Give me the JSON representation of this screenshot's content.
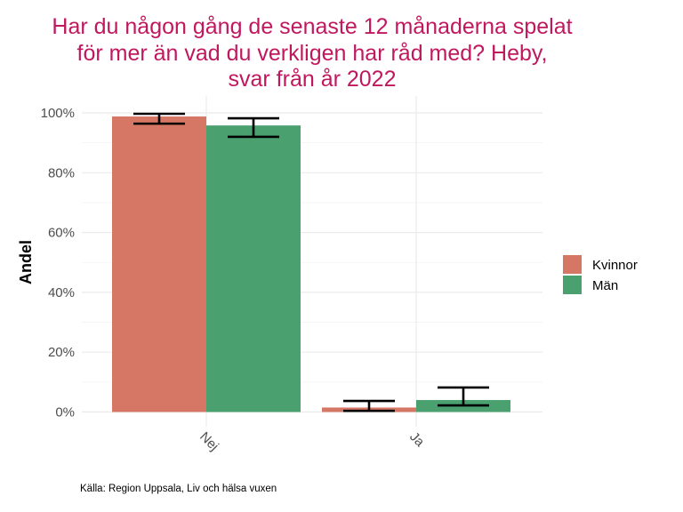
{
  "chart_data": {
    "type": "bar",
    "title_lines": [
      "Har du någon gång de senaste 12 månaderna spelat",
      "för mer än vad du verkligen har råd med? Heby,",
      "svar från år 2022"
    ],
    "xlabel": "",
    "ylabel": "Andel",
    "ylim": [
      0,
      100
    ],
    "yticks": [
      0,
      20,
      40,
      60,
      80,
      100
    ],
    "ytick_labels": [
      "0%",
      "20%",
      "40%",
      "60%",
      "80%",
      "100%"
    ],
    "categories": [
      "Nej",
      "Ja"
    ],
    "series": [
      {
        "name": "Kvinnor",
        "color": "#d67766",
        "values": [
          98.8,
          1.5
        ],
        "err_low": [
          96.4,
          0.4
        ],
        "err_high": [
          99.7,
          3.7
        ]
      },
      {
        "name": "Män",
        "color": "#4aa06f",
        "values": [
          95.8,
          4.0
        ],
        "err_low": [
          92.0,
          2.2
        ],
        "err_high": [
          98.2,
          8.2
        ]
      }
    ],
    "legend_position": "right",
    "grid": true,
    "caption": "Källa: Region Uppsala, Liv och hälsa vuxen"
  }
}
